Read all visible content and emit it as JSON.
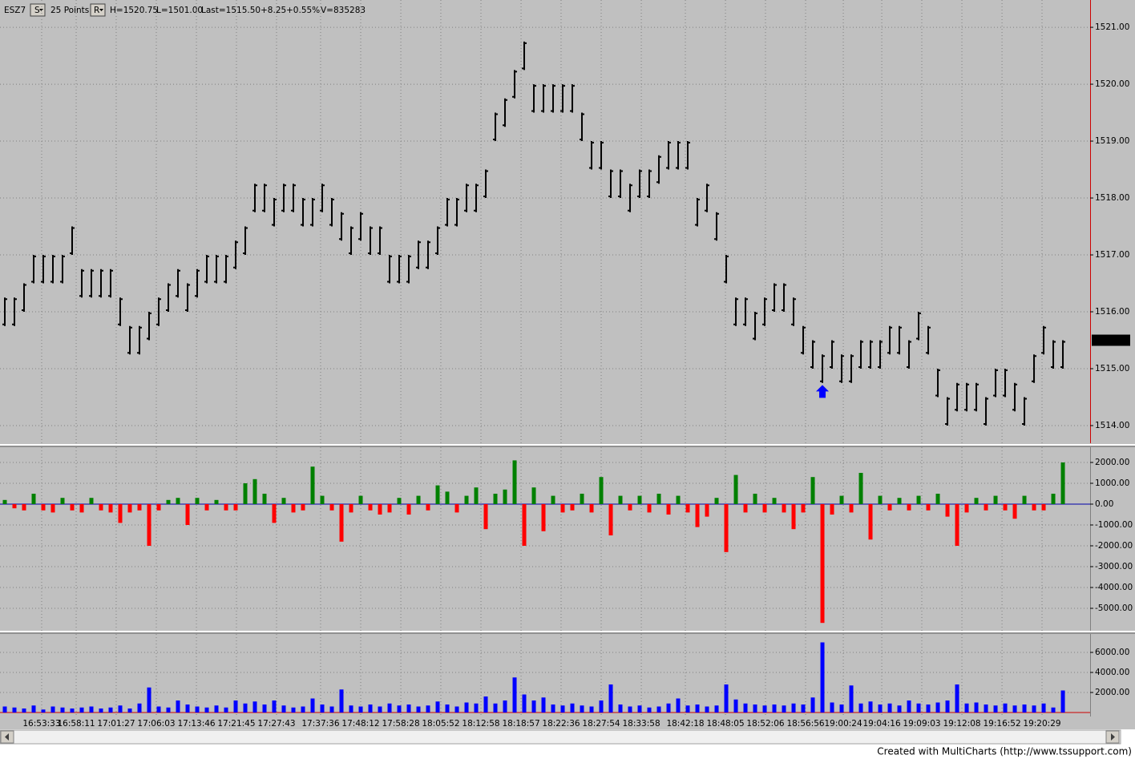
{
  "chart_data": [
    {
      "type": "range-bar",
      "symbol": "ESZ7",
      "s_button": "S",
      "interval": "25 Points",
      "r_button": "R",
      "high_label": "H=1520.75",
      "low_label": "L=1501.00",
      "last_label": "Last=1515.50",
      "change_label": "+8.25",
      "change_pct_label": "+0.55%",
      "volume_label": "V=835283",
      "color": "#000000",
      "grid": true,
      "ylim": [
        1513.69,
        1521.48
      ],
      "yticks": [
        {
          "value": 1514,
          "label": "1514.00"
        },
        {
          "value": 1515,
          "label": "1515.00"
        },
        {
          "value": 1516,
          "label": "1516.00"
        },
        {
          "value": 1517,
          "label": "1517.00"
        },
        {
          "value": 1518,
          "label": "1518.00"
        },
        {
          "value": 1519,
          "label": "1519.00"
        },
        {
          "value": 1520,
          "label": "1520.00"
        },
        {
          "value": 1521,
          "label": "1521.00"
        }
      ],
      "last_price": {
        "value": 1515.5,
        "label": "1515.50"
      },
      "signal": {
        "x": 85,
        "y": 1514.6,
        "color": "#0000ff"
      },
      "series": [
        {
          "name": "high",
          "values": [
            1516.25,
            1516.25,
            1516.5,
            1517,
            1517,
            1517,
            1517,
            1517.5,
            1516.75,
            1516.75,
            1516.75,
            1516.75,
            1516.25,
            1515.75,
            1515.75,
            1516,
            1516.25,
            1516.5,
            1516.75,
            1516.5,
            1516.75,
            1517,
            1517,
            1517,
            1517.25,
            1517.5,
            1518.25,
            1518.25,
            1518,
            1518.25,
            1518.25,
            1518,
            1518,
            1518.25,
            1518,
            1517.75,
            1517.5,
            1517.75,
            1517.5,
            1517.5,
            1517,
            1517,
            1517,
            1517.25,
            1517.25,
            1517.5,
            1518,
            1518,
            1518.25,
            1518.25,
            1518.5,
            1519.5,
            1519.75,
            1520.25,
            1520.75,
            1520,
            1520,
            1520,
            1520,
            1520,
            1519.5,
            1519,
            1519,
            1518.5,
            1518.5,
            1518.25,
            1518.5,
            1518.5,
            1518.75,
            1519,
            1519,
            1519,
            1518,
            1518.25,
            1517.75,
            1517,
            1516.25,
            1516.25,
            1516,
            1516.25,
            1516.5,
            1516.5,
            1516.25,
            1515.75,
            1515.5,
            1515.25,
            1515.5,
            1515.25,
            1515.25,
            1515.5,
            1515.5,
            1515.5,
            1515.75,
            1515.75,
            1515.5,
            1516,
            1515.75,
            1515,
            1514.5,
            1514.75,
            1514.75,
            1514.75,
            1514.5,
            1515,
            1515,
            1514.75,
            1514.5,
            1515.25,
            1515.75,
            1515.5,
            1515.5
          ]
        },
        {
          "name": "low",
          "values": [
            1515.75,
            1515.75,
            1516.0,
            1516.5,
            1516.5,
            1516.5,
            1516.5,
            1517.0,
            1516.25,
            1516.25,
            1516.25,
            1516.25,
            1515.75,
            1515.25,
            1515.25,
            1515.5,
            1515.75,
            1516.0,
            1516.25,
            1516.0,
            1516.25,
            1516.5,
            1516.5,
            1516.5,
            1516.75,
            1517.0,
            1517.75,
            1517.75,
            1517.5,
            1517.75,
            1517.75,
            1517.5,
            1517.5,
            1517.75,
            1517.5,
            1517.25,
            1517.0,
            1517.25,
            1517.0,
            1517.0,
            1516.5,
            1516.5,
            1516.5,
            1516.75,
            1516.75,
            1517.0,
            1517.5,
            1517.5,
            1517.75,
            1517.75,
            1518.0,
            1519.0,
            1519.25,
            1519.75,
            1520.25,
            1519.5,
            1519.5,
            1519.5,
            1519.5,
            1519.5,
            1519.0,
            1518.5,
            1518.5,
            1518.0,
            1518.0,
            1517.75,
            1518.0,
            1518.0,
            1518.25,
            1518.5,
            1518.5,
            1518.5,
            1517.5,
            1517.75,
            1517.25,
            1516.5,
            1515.75,
            1515.75,
            1515.5,
            1515.75,
            1516.0,
            1516.0,
            1515.75,
            1515.25,
            1515.0,
            1514.75,
            1515.0,
            1514.75,
            1514.75,
            1515.0,
            1515.0,
            1515.0,
            1515.25,
            1515.25,
            1515.0,
            1515.5,
            1515.25,
            1514.5,
            1514.0,
            1514.25,
            1514.25,
            1514.25,
            1514.0,
            1514.5,
            1514.5,
            1514.25,
            1514.0,
            1514.75,
            1515.25,
            1515.0,
            1515.0
          ]
        }
      ]
    },
    {
      "type": "bar",
      "up_color": "#008000",
      "down_color": "#ff0000",
      "zero_color": "#0000aa",
      "grid": true,
      "ylim": [
        -6077,
        2731
      ],
      "yticks": [
        {
          "value": 2000,
          "label": "2000.00"
        },
        {
          "value": 1000,
          "label": "1000.00"
        },
        {
          "value": 0,
          "label": "0.00"
        },
        {
          "value": -1000,
          "label": "-1000.00"
        },
        {
          "value": -2000,
          "label": "-2000.00"
        },
        {
          "value": -3000,
          "label": "-3000.00"
        },
        {
          "value": -4000,
          "label": "-4000.00"
        },
        {
          "value": -5000,
          "label": "-5000.00"
        }
      ],
      "values": [
        200,
        -200,
        -300,
        500,
        -300,
        -400,
        300,
        -300,
        -400,
        300,
        -300,
        -400,
        -900,
        -400,
        -300,
        -2000,
        -300,
        200,
        300,
        -1000,
        300,
        -300,
        200,
        -300,
        -300,
        1000,
        1200,
        500,
        -900,
        300,
        -400,
        -300,
        1800,
        400,
        -300,
        -1800,
        -400,
        400,
        -300,
        -500,
        -400,
        300,
        -500,
        400,
        -300,
        900,
        600,
        -400,
        400,
        800,
        -1200,
        500,
        700,
        2100,
        -2000,
        800,
        -1300,
        400,
        -400,
        -300,
        500,
        -400,
        1300,
        -1500,
        400,
        -300,
        400,
        -400,
        500,
        -500,
        400,
        -400,
        -1100,
        -600,
        300,
        -2300,
        1400,
        -400,
        500,
        -400,
        300,
        -400,
        -1200,
        -400,
        1300,
        -5700,
        -500,
        400,
        -400,
        1500,
        -1700,
        400,
        -300,
        300,
        -300,
        400,
        -300,
        500,
        -600,
        -2000,
        -400,
        300,
        -300,
        400,
        -300,
        -700,
        400,
        -300,
        -300,
        500,
        2000
      ]
    },
    {
      "type": "bar",
      "color": "#0000ff",
      "zero_color": "#cc0000",
      "grid": true,
      "ylim": [
        -400,
        7840
      ],
      "yticks": [
        {
          "value": 2000,
          "label": "2000.00"
        },
        {
          "value": 4000,
          "label": "4000.00"
        },
        {
          "value": 6000,
          "label": "6000.00"
        }
      ],
      "xlim": [
        -0.5,
        112.83
      ],
      "xticks": [
        {
          "value": 3.83,
          "label": "16:53:33"
        },
        {
          "value": 7.42,
          "label": "16:58:11"
        },
        {
          "value": 11.58,
          "label": "17:01:27"
        },
        {
          "value": 15.75,
          "label": "17:06:03"
        },
        {
          "value": 19.92,
          "label": "17:13:46"
        },
        {
          "value": 24.08,
          "label": "17:21:45"
        },
        {
          "value": 28.25,
          "label": "17:27:43"
        },
        {
          "value": 32.83,
          "label": "17:37:36"
        },
        {
          "value": 37,
          "label": "17:48:12"
        },
        {
          "value": 41.17,
          "label": "17:58:28"
        },
        {
          "value": 45.33,
          "label": "18:05:52"
        },
        {
          "value": 49.5,
          "label": "18:12:58"
        },
        {
          "value": 53.67,
          "label": "18:18:57"
        },
        {
          "value": 57.83,
          "label": "18:22:36"
        },
        {
          "value": 62,
          "label": "18:27:54"
        },
        {
          "value": 66.17,
          "label": "18:33:58"
        },
        {
          "value": 70.75,
          "label": "18:42:18"
        },
        {
          "value": 74.92,
          "label": "18:48:05"
        },
        {
          "value": 79.08,
          "label": "18:52:06"
        },
        {
          "value": 83.25,
          "label": "18:56:56"
        },
        {
          "value": 87.17,
          "label": "19:00:24"
        },
        {
          "value": 91.17,
          "label": "19:04:16"
        },
        {
          "value": 95.33,
          "label": "19:09:03"
        },
        {
          "value": 99.5,
          "label": "19:12:08"
        },
        {
          "value": 103.67,
          "label": "19:16:52"
        },
        {
          "value": 107.83,
          "label": "19:20:29"
        }
      ],
      "values": [
        600,
        500,
        400,
        700,
        300,
        600,
        500,
        400,
        500,
        600,
        400,
        500,
        700,
        400,
        900,
        2500,
        600,
        500,
        1200,
        800,
        600,
        500,
        700,
        500,
        1200,
        900,
        1100,
        800,
        1200,
        700,
        500,
        600,
        1400,
        800,
        600,
        2300,
        700,
        600,
        800,
        600,
        900,
        700,
        800,
        600,
        700,
        1100,
        800,
        600,
        1000,
        900,
        1600,
        900,
        1200,
        3500,
        1800,
        1200,
        1500,
        800,
        700,
        900,
        700,
        600,
        1200,
        2800,
        800,
        600,
        700,
        500,
        600,
        900,
        1400,
        700,
        800,
        600,
        700,
        2800,
        1300,
        900,
        800,
        700,
        800,
        700,
        900,
        800,
        1500,
        7000,
        1000,
        800,
        2700,
        900,
        1100,
        800,
        900,
        700,
        1200,
        900,
        800,
        1000,
        1200,
        2800,
        900,
        1000,
        800,
        700,
        900,
        700,
        800,
        700,
        900,
        500,
        2200
      ]
    }
  ],
  "footer": "Created with MultiCharts (http://www.tssupport.com)"
}
